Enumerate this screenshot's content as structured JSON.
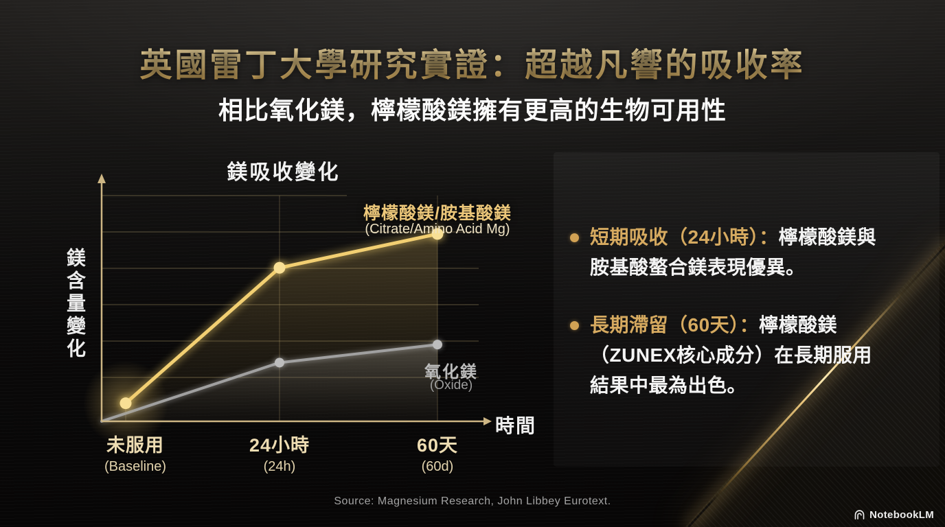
{
  "slide": {
    "title": "英國雷丁大學研究實證：超越凡響的吸收率",
    "subtitle": "相比氧化鎂，檸檬酸鎂擁有更高的生物可用性",
    "source": "Source: Magnesium Research, John Libbey Eurotext.",
    "brand": "NotebookLM"
  },
  "colors": {
    "accent_gold": "#e7c278",
    "title_gold": "#eccf8d",
    "text_white": "#f4f4f4",
    "text_gray": "#a3a3a3",
    "axis_tan": "#cdb684"
  },
  "chart_data": {
    "type": "line",
    "title": "鎂吸收變化",
    "xlabel": "時間",
    "ylabel": "鎂含量變化",
    "categories": [
      {
        "zh": "未服用",
        "en": "(Baseline)"
      },
      {
        "zh": "24小時",
        "en": "(24h)"
      },
      {
        "zh": "60天",
        "en": "(60d)"
      }
    ],
    "series": [
      {
        "name_zh": "檸檬酸鎂/胺基酸鎂",
        "name_en": "(Citrate/Amino Acid Mg)",
        "color": "#f2cf72",
        "point_color": "#f8df95",
        "area_top": "rgba(222,186,100,0.24)",
        "area_bottom": "rgba(222,186,100,0.02)",
        "values": [
          8,
          68,
          83
        ]
      },
      {
        "name_zh": "氧化鎂",
        "name_en": "(Oxide)",
        "color": "#a0a0a0",
        "point_color": "#bdbdbd",
        "area_top": "rgba(150,150,150,0.36)",
        "area_bottom": "rgba(60,60,60,0.06)",
        "values": [
          0,
          26,
          34
        ]
      }
    ],
    "ylim": [
      0,
      100
    ],
    "grid": true,
    "legend_position": "inline-right"
  },
  "bullets": [
    {
      "lead": "短期吸收（24小時）：",
      "lines": [
        "檸檬酸鎂與",
        "胺基酸螯合鎂表現優異。"
      ]
    },
    {
      "lead": "長期滯留（60天）：",
      "lines": [
        "檸檬酸鎂",
        "（ZUNEX核心成分）在長期服用",
        "結果中最為出色。"
      ]
    }
  ]
}
